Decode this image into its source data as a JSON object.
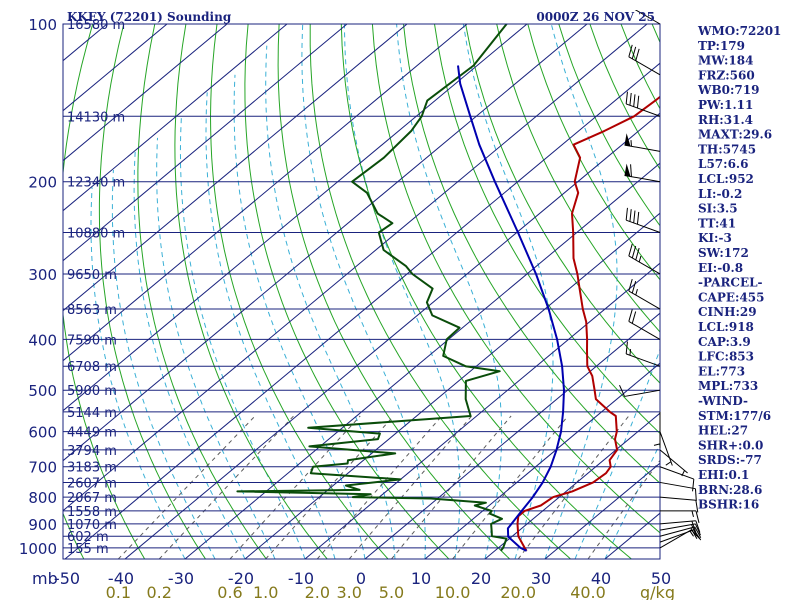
{
  "header": {
    "station": "KKEY (72201) Sounding",
    "time": "0000Z 26 NOV 25"
  },
  "colors": {
    "isobar": "#1a237e",
    "isotherm": "#1a237e",
    "dry_adiabat": "#26a526",
    "moist_adiabat": "#3ab0d6",
    "mixing_ratio": "#5c5c5c",
    "temperature": "#b00000",
    "dewpoint": "#0a4d0a",
    "parcel": "#0000b0",
    "axis_text": "#1a237e",
    "mixing_text": "#857a1c"
  },
  "chart_data": {
    "type": "line",
    "title": "KKEY (72201) Sounding",
    "subtitle": "0000Z 26 NOV 25",
    "y_scale": "log-pressure",
    "y_unit_label": "mb",
    "pressure_range": [
      1000,
      100
    ],
    "temp_range": [
      -50,
      50
    ],
    "pressure_ticks": [
      "100",
      "200",
      "300",
      "400",
      "500",
      "600",
      "700",
      "800",
      "900",
      "1000"
    ],
    "temp_ticks": [
      "-50",
      "-40",
      "-30",
      "-20",
      "-10",
      "0",
      "10",
      "20",
      "30",
      "40",
      "50"
    ],
    "mixing_ratio_unit": "g/kg",
    "mixing_ratio_ticks": [
      "0.1",
      "0.2",
      "0.6",
      "1.0",
      "2.0",
      "3.0",
      "5.0",
      "10.0",
      "20.0",
      "40.0"
    ],
    "height_labels": [
      {
        "pressure": 100,
        "label": "16580 m"
      },
      {
        "pressure": 150,
        "label": "14130 m"
      },
      {
        "pressure": 200,
        "label": "12340 m"
      },
      {
        "pressure": 250,
        "label": "10880 m"
      },
      {
        "pressure": 300,
        "label": "9650 m"
      },
      {
        "pressure": 350,
        "label": "8563 m"
      },
      {
        "pressure": 400,
        "label": "7590 m"
      },
      {
        "pressure": 450,
        "label": "6708 m"
      },
      {
        "pressure": 500,
        "label": "5900 m"
      },
      {
        "pressure": 550,
        "label": "5144 m"
      },
      {
        "pressure": 600,
        "label": "4449 m"
      },
      {
        "pressure": 650,
        "label": "3794 m"
      },
      {
        "pressure": 700,
        "label": "3183 m"
      },
      {
        "pressure": 750,
        "label": "2607 m"
      },
      {
        "pressure": 800,
        "label": "2067 m"
      },
      {
        "pressure": 850,
        "label": "1558 m"
      },
      {
        "pressure": 900,
        "label": "1070 m"
      },
      {
        "pressure": 950,
        "label": "602 m"
      },
      {
        "pressure": 1000,
        "label": "155 m"
      }
    ],
    "series": [
      {
        "name": "temperature",
        "points": [
          [
            1013,
            25.3
          ],
          [
            1000,
            24.4
          ],
          [
            950,
            21.0
          ],
          [
            900,
            18.4
          ],
          [
            870,
            17.0
          ],
          [
            850,
            17.0
          ],
          [
            830,
            18.6
          ],
          [
            800,
            19.0
          ],
          [
            780,
            21.0
          ],
          [
            750,
            22.7
          ],
          [
            720,
            23.0
          ],
          [
            700,
            22.5
          ],
          [
            680,
            21.0
          ],
          [
            650,
            20.2
          ],
          [
            620,
            17.7
          ],
          [
            600,
            16.5
          ],
          [
            560,
            13.2
          ],
          [
            550,
            11.4
          ],
          [
            520,
            6.5
          ],
          [
            500,
            4.5
          ],
          [
            470,
            1.3
          ],
          [
            450,
            -1.5
          ],
          [
            420,
            -4.7
          ],
          [
            400,
            -6.9
          ],
          [
            370,
            -10.6
          ],
          [
            350,
            -13.7
          ],
          [
            320,
            -18.3
          ],
          [
            300,
            -21.6
          ],
          [
            280,
            -25.4
          ],
          [
            260,
            -28.8
          ],
          [
            250,
            -30.6
          ],
          [
            230,
            -34.6
          ],
          [
            210,
            -37.7
          ],
          [
            200,
            -40.5
          ],
          [
            180,
            -44.4
          ],
          [
            170,
            -48.1
          ],
          [
            160,
            -45.7
          ],
          [
            150,
            -43.7
          ],
          [
            140,
            -43.3
          ],
          [
            130,
            -43.1
          ],
          [
            120,
            -42.6
          ],
          [
            110,
            -42.1
          ],
          [
            100,
            -41.8
          ]
        ]
      },
      {
        "name": "dewpoint",
        "points": [
          [
            1013,
            21.0
          ],
          [
            1000,
            20.8
          ],
          [
            960,
            19.5
          ],
          [
            950,
            16.6
          ],
          [
            930,
            15.6
          ],
          [
            900,
            14.0
          ],
          [
            880,
            14.8
          ],
          [
            860,
            11.7
          ],
          [
            850,
            11.5
          ],
          [
            830,
            7.6
          ],
          [
            820,
            8.9
          ],
          [
            805,
            -1.1
          ],
          [
            800,
            -14.4
          ],
          [
            790,
            -12.0
          ],
          [
            780,
            -34.8
          ],
          [
            775,
            -14.7
          ],
          [
            760,
            -17.9
          ],
          [
            740,
            -10.0
          ],
          [
            720,
            -26.2
          ],
          [
            700,
            -27.1
          ],
          [
            690,
            -22.0
          ],
          [
            680,
            -22.6
          ],
          [
            660,
            -16.1
          ],
          [
            640,
            -31.8
          ],
          [
            620,
            -21.8
          ],
          [
            605,
            -22.6
          ],
          [
            590,
            -35.7
          ],
          [
            560,
            -11.0
          ],
          [
            520,
            -15.2
          ],
          [
            480,
            -18.8
          ],
          [
            460,
            -15.1
          ],
          [
            450,
            -21.8
          ],
          [
            430,
            -27.6
          ],
          [
            400,
            -30.3
          ],
          [
            380,
            -30.5
          ],
          [
            360,
            -37.5
          ],
          [
            340,
            -41.0
          ],
          [
            320,
            -42.8
          ],
          [
            300,
            -49.1
          ],
          [
            290,
            -51.7
          ],
          [
            270,
            -58.7
          ],
          [
            250,
            -63.0
          ],
          [
            240,
            -62.6
          ],
          [
            230,
            -67.0
          ],
          [
            210,
            -72.9
          ],
          [
            200,
            -77.6
          ],
          [
            180,
            -77.1
          ],
          [
            160,
            -77.9
          ],
          [
            150,
            -79.1
          ],
          [
            140,
            -81.3
          ],
          [
            120,
            -80.6
          ],
          [
            100,
            -83.4
          ]
        ]
      },
      {
        "name": "parcel",
        "points": [
          [
            1013,
            25.3
          ],
          [
            1000,
            23.7
          ],
          [
            952,
            19.4
          ],
          [
            918,
            17.7
          ],
          [
            900,
            17.4
          ],
          [
            850,
            16.5
          ],
          [
            800,
            15.6
          ],
          [
            750,
            14.3
          ],
          [
            700,
            12.5
          ],
          [
            650,
            10.1
          ],
          [
            600,
            7.2
          ],
          [
            550,
            3.6
          ],
          [
            500,
            -0.6
          ],
          [
            450,
            -5.7
          ],
          [
            400,
            -11.9
          ],
          [
            350,
            -19.4
          ],
          [
            300,
            -28.5
          ],
          [
            250,
            -39.8
          ],
          [
            200,
            -53.8
          ],
          [
            170,
            -63.8
          ],
          [
            150,
            -71.0
          ],
          [
            130,
            -79.2
          ],
          [
            120,
            -83.2
          ]
        ]
      }
    ],
    "wind_barbs": [
      {
        "pressure": 1000,
        "dir": 60,
        "spd": 8
      },
      {
        "pressure": 975,
        "dir": 70,
        "spd": 15
      },
      {
        "pressure": 950,
        "dir": 75,
        "spd": 20
      },
      {
        "pressure": 925,
        "dir": 80,
        "spd": 20
      },
      {
        "pressure": 900,
        "dir": 85,
        "spd": 18
      },
      {
        "pressure": 850,
        "dir": 90,
        "spd": 15
      },
      {
        "pressure": 800,
        "dir": 95,
        "spd": 12
      },
      {
        "pressure": 750,
        "dir": 100,
        "spd": 10
      },
      {
        "pressure": 700,
        "dir": 110,
        "spd": 8
      },
      {
        "pressure": 650,
        "dir": 130,
        "spd": 5
      },
      {
        "pressure": 600,
        "dir": 160,
        "spd": 5
      },
      {
        "pressure": 550,
        "dir": 180,
        "spd": 5
      },
      {
        "pressure": 500,
        "dir": 260,
        "spd": 10
      },
      {
        "pressure": 450,
        "dir": 290,
        "spd": 15
      },
      {
        "pressure": 400,
        "dir": 300,
        "spd": 20
      },
      {
        "pressure": 350,
        "dir": 300,
        "spd": 25
      },
      {
        "pressure": 300,
        "dir": 300,
        "spd": 35
      },
      {
        "pressure": 250,
        "dir": 290,
        "spd": 40
      },
      {
        "pressure": 200,
        "dir": 280,
        "spd": 60
      },
      {
        "pressure": 175,
        "dir": 280,
        "spd": 55
      },
      {
        "pressure": 150,
        "dir": 290,
        "spd": 40
      },
      {
        "pressure": 125,
        "dir": 300,
        "spd": 30
      },
      {
        "pressure": 100,
        "dir": 300,
        "spd": 25
      }
    ]
  },
  "indices": [
    "WMO:72201",
    "TP:179",
    "MW:184",
    "FRZ:560",
    "WB0:719",
    "PW:1.11",
    "RH:31.4",
    "MAXT:29.6",
    "TH:5745",
    "L57:6.6",
    "LCL:952",
    "LI:-0.2",
    "SI:3.5",
    "TT:41",
    "KI:-3",
    "SW:172",
    "EI:-0.8",
    "-PARCEL-",
    "CAPE:455",
    "CINH:29",
    "LCL:918",
    "CAP:3.9",
    "LFC:853",
    "EL:773",
    "MPL:733",
    "-WIND-",
    "STM:177/6",
    "HEL:27",
    "SHR+:0.0",
    "SRDS:-77",
    "EHI:0.1",
    "BRN:28.6",
    "BSHR:16"
  ]
}
